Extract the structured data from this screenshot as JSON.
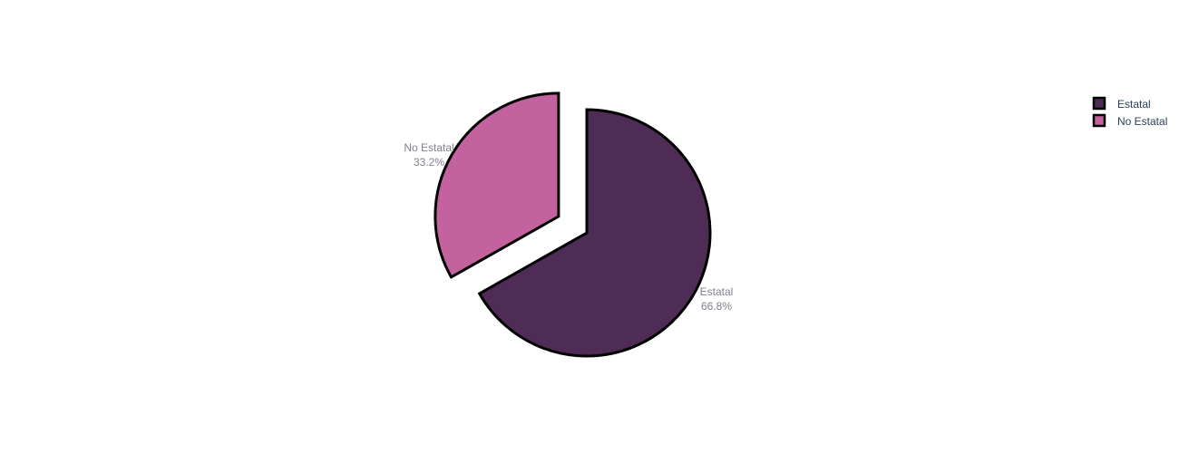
{
  "chart_data": {
    "type": "pie",
    "labels": [
      "Estatal",
      "No Estatal"
    ],
    "percent_labels": [
      "66.8%",
      "33.2%"
    ],
    "values": [
      66.8,
      33.2
    ],
    "colors": [
      "#4e2c55",
      "#c4619f"
    ],
    "pulled": [
      false,
      true
    ],
    "legend_position": "top-right",
    "title": ""
  },
  "legend": {
    "items": [
      {
        "label": "Estatal",
        "color": "#4e2c55"
      },
      {
        "label": "No Estatal",
        "color": "#c4619f"
      }
    ]
  }
}
